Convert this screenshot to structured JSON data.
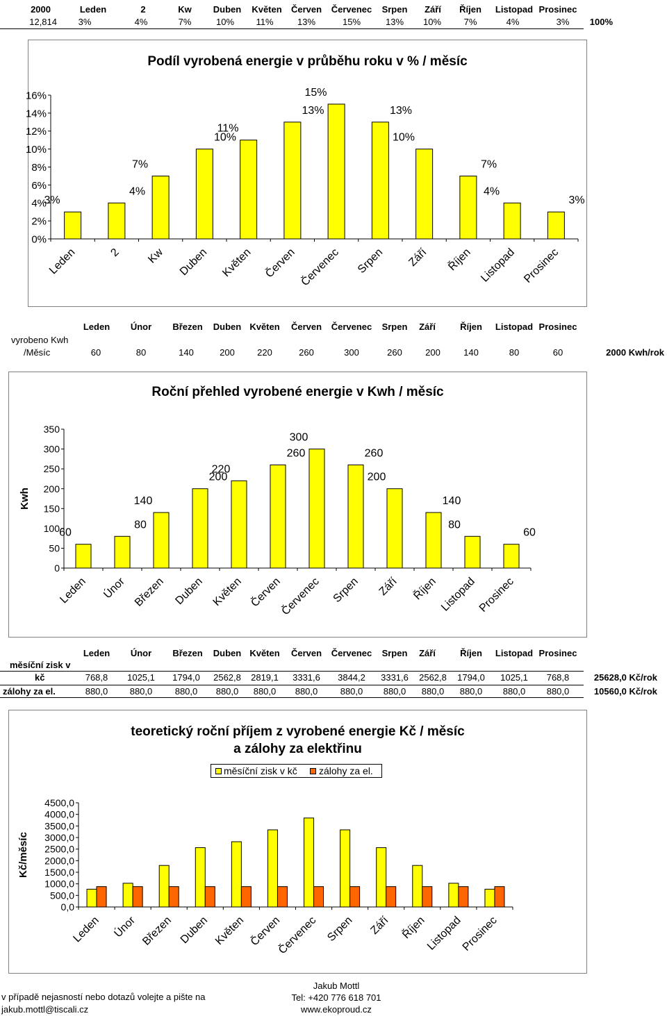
{
  "top_table": {
    "year": "2000",
    "total_kwh": "12,814",
    "months": [
      "Leden",
      "2",
      "Kw",
      "Duben",
      "Květen",
      "Červen",
      "Červenec",
      "Srpen",
      "Září",
      "Říjen",
      "Listopad",
      "Prosinec"
    ],
    "percents": [
      "3%",
      "4%",
      "7%",
      "10%",
      "11%",
      "13%",
      "15%",
      "13%",
      "10%",
      "7%",
      "4%",
      "3%"
    ],
    "total_percent": "100%"
  },
  "kwh_table": {
    "months": [
      "Leden",
      "Únor",
      "Březen",
      "Duben",
      "Květen",
      "Červen",
      "Červenec",
      "Srpen",
      "Září",
      "Říjen",
      "Listopad",
      "Prosinec"
    ],
    "row_label_1": "vyrobeno Kwh",
    "row_label_2": "/Měsíc",
    "values": [
      "60",
      "80",
      "140",
      "200",
      "220",
      "260",
      "300",
      "260",
      "200",
      "140",
      "80",
      "60"
    ],
    "total": "2000 Kwh/rok"
  },
  "money_table": {
    "months": [
      "Leden",
      "Únor",
      "Březen",
      "Duben",
      "Květen",
      "Červen",
      "Červenec",
      "Srpen",
      "Září",
      "Říjen",
      "Listopad",
      "Prosinec"
    ],
    "row1_label_1": "měsíční zisk v",
    "row1_label_2": "kč",
    "row1_values": [
      "768,8",
      "1025,1",
      "1794,0",
      "2562,8",
      "2819,1",
      "3331,6",
      "3844,2",
      "3331,6",
      "2562,8",
      "1794,0",
      "1025,1",
      "768,8"
    ],
    "row1_total": "25628,0 Kč/rok",
    "row2_label": "zálohy za el.",
    "row2_values": [
      "880,0",
      "880,0",
      "880,0",
      "880,0",
      "880,0",
      "880,0",
      "880,0",
      "880,0",
      "880,0",
      "880,0",
      "880,0",
      "880,0"
    ],
    "row2_total": "10560,0 Kč/rok"
  },
  "footer": {
    "note_1": "v případě nejasností nebo dotazů volejte a pište na",
    "email": "jakub.mottl@tiscali.cz",
    "name": "Jakub Mottl",
    "phone": "Tel: +420 776 618 701",
    "web": "www.ekoproud.cz"
  },
  "colors": {
    "yellow": "#ffff00",
    "orange": "#ff6600",
    "border": "#000000",
    "grid": "#7f7f7f"
  },
  "chart_data": [
    {
      "type": "bar",
      "title": "Podíl vyrobená energie v průběhu roku v % / měsíc",
      "categories": [
        "Leden",
        "2",
        "Kw",
        "Duben",
        "Květen",
        "Červen",
        "Červenec",
        "Srpen",
        "Září",
        "Říjen",
        "Listopad",
        "Prosinec"
      ],
      "values": [
        3,
        4,
        7,
        10,
        11,
        13,
        15,
        13,
        10,
        7,
        4,
        3
      ],
      "data_labels": [
        "3%",
        "4%",
        "7%",
        "10%",
        "11%",
        "13%",
        "15%",
        "13%",
        "10%",
        "7%",
        "4%",
        "3%"
      ],
      "yticks": [
        "0%",
        "2%",
        "4%",
        "6%",
        "8%",
        "10%",
        "12%",
        "14%",
        "16%"
      ],
      "ylim": [
        0,
        16
      ],
      "ylabel": "",
      "xlabel": "",
      "legend": "none",
      "grid": false
    },
    {
      "type": "bar",
      "title": "Roční přehled vyrobené energie v Kwh / měsíc",
      "categories": [
        "Leden",
        "Únor",
        "Březen",
        "Duben",
        "Květen",
        "Červen",
        "Červenec",
        "Srpen",
        "Září",
        "Říjen",
        "Listopad",
        "Prosinec"
      ],
      "values": [
        60,
        80,
        140,
        200,
        220,
        260,
        300,
        260,
        200,
        140,
        80,
        60
      ],
      "data_labels": [
        "60",
        "80",
        "140",
        "200",
        "220",
        "260",
        "300",
        "260",
        "200",
        "140",
        "80",
        "60"
      ],
      "yticks": [
        "0",
        "50",
        "100",
        "150",
        "200",
        "250",
        "300",
        "350"
      ],
      "ylim": [
        0,
        350
      ],
      "ylabel": "Kwh",
      "xlabel": "",
      "legend": "none",
      "grid": false
    },
    {
      "type": "bar",
      "title_line_1": "teoretický roční příjem z vyrobené energie Kč / měsíc",
      "title_line_2": "a zálohy za elektřinu",
      "categories": [
        "Leden",
        "Únor",
        "Březen",
        "Duben",
        "Květen",
        "Červen",
        "Červenec",
        "Srpen",
        "Září",
        "Říjen",
        "Listopad",
        "Prosinec"
      ],
      "series": [
        {
          "name": "měsíční zisk v kč",
          "values": [
            768.8,
            1025.1,
            1794.0,
            2562.8,
            2819.1,
            3331.6,
            3844.2,
            3331.6,
            2562.8,
            1794.0,
            1025.1,
            768.8
          ],
          "color": "#ffff00"
        },
        {
          "name": "zálohy za el.",
          "values": [
            880,
            880,
            880,
            880,
            880,
            880,
            880,
            880,
            880,
            880,
            880,
            880
          ],
          "color": "#ff6600"
        }
      ],
      "yticks": [
        "0,0",
        "500,0",
        "1000,0",
        "1500,0",
        "2000,0",
        "2500,0",
        "3000,0",
        "3500,0",
        "4000,0",
        "4500,0"
      ],
      "ylim": [
        0,
        4500
      ],
      "ylabel": "Kč/měsíc",
      "xlabel": "",
      "legend": "top",
      "grid": false
    }
  ]
}
